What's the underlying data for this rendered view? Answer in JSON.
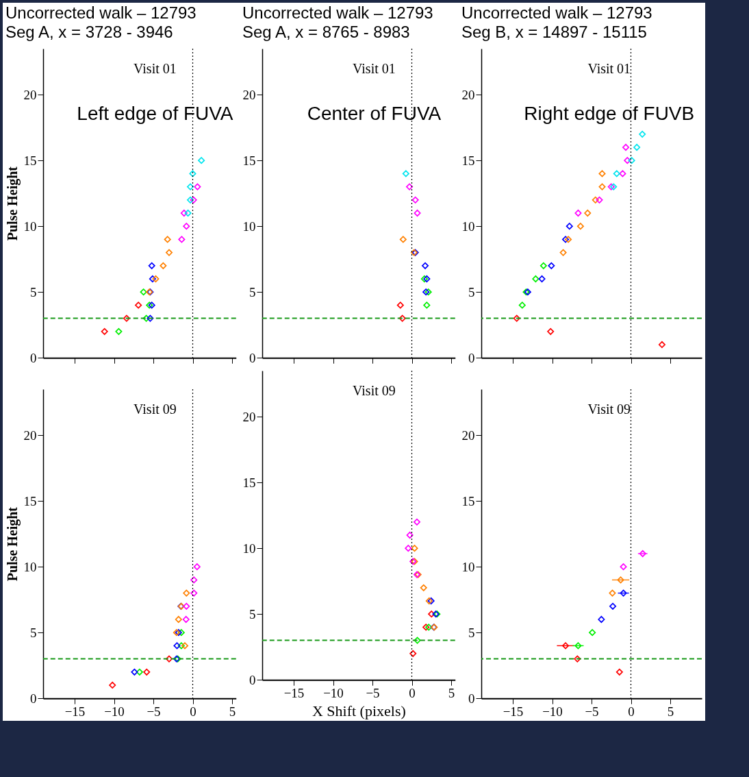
{
  "chart_data": [
    {
      "type": "scatter",
      "title": "Uncorrected walk – 12793\nSeg A, x = 3728 - 3946",
      "ylabel": "Pulse Height",
      "annotations": [
        "Visit 01",
        "Left edge of FUVA"
      ],
      "xlim": [
        -19,
        5.5
      ],
      "ylim": [
        0,
        23.5
      ],
      "xticks": [
        -15,
        -10,
        -5,
        0,
        5
      ],
      "yticks": [
        0,
        5,
        10,
        15,
        20
      ],
      "tick_labels": "y",
      "marker": "diamond",
      "legend": false,
      "grid": false,
      "ref_lines": [
        {
          "axis": "y",
          "value": 3,
          "color": "#1a9a1a",
          "line_style": "dashed"
        },
        {
          "axis": "x",
          "value": 0,
          "color": "#000000",
          "line_style": "dotted"
        }
      ],
      "series": [
        {
          "color": "#ff0000",
          "x": [
            -6.9,
            -8.4,
            -11.2
          ],
          "values": [
            4,
            3,
            2
          ]
        },
        {
          "color": "#00ee00",
          "x": [
            -6.25,
            -5.5,
            -5.9,
            -9.4
          ],
          "values": [
            5,
            4,
            3,
            2
          ]
        },
        {
          "color": "#0000ff",
          "x": [
            -5.2,
            -5.1,
            -5.4,
            -5.2,
            -5.4
          ],
          "values": [
            7,
            6,
            5,
            4,
            3
          ]
        },
        {
          "color": "#ff8000",
          "x": [
            -3.2,
            -3.0,
            -3.75,
            -4.7,
            -5.5
          ],
          "values": [
            9,
            8,
            7,
            6,
            5
          ]
        },
        {
          "color": "#ff00ff",
          "x": [
            0.6,
            0.1,
            -1.1,
            -0.8,
            -1.4
          ],
          "values": [
            13,
            12,
            11,
            10,
            9
          ]
        },
        {
          "color": "#00e5ee",
          "x": [
            1.1,
            0,
            -0.3,
            -0.3,
            -0.6
          ],
          "values": [
            15,
            14,
            13,
            12,
            11
          ]
        }
      ]
    },
    {
      "type": "scatter",
      "title": "Uncorrected walk – 12793\nSeg A, x = 8765 - 8983",
      "annotations": [
        "Visit 01",
        "Center of FUVA"
      ],
      "xlim": [
        -19,
        5.5
      ],
      "ylim": [
        0,
        23.5
      ],
      "xticks": [
        -15,
        -10,
        -5,
        0,
        5
      ],
      "yticks": [
        0,
        5,
        10,
        15,
        20
      ],
      "tick_labels": "y",
      "marker": "diamond",
      "legend": false,
      "grid": false,
      "ref_lines": [
        {
          "axis": "y",
          "value": 3,
          "color": "#1a9a1a",
          "line_style": "dashed"
        },
        {
          "axis": "x",
          "value": 0,
          "color": "#000000",
          "line_style": "dotted"
        }
      ],
      "series": [
        {
          "color": "#ff0000",
          "x": [
            -1.45,
            -1.2
          ],
          "values": [
            4,
            3
          ]
        },
        {
          "color": "#00ee00",
          "x": [
            1.6,
            2.1,
            1.9
          ],
          "values": [
            6,
            5,
            4
          ]
        },
        {
          "color": "#0000ff",
          "x": [
            0.45,
            1.7,
            1.9,
            1.8
          ],
          "values": [
            8,
            7,
            6,
            5
          ]
        },
        {
          "color": "#ff8000",
          "x": [
            -1.1,
            0.3
          ],
          "values": [
            9,
            8
          ]
        },
        {
          "color": "#ff00ff",
          "x": [
            -0.3,
            0.45,
            0.7
          ],
          "values": [
            13,
            12,
            11
          ]
        },
        {
          "color": "#00e5ee",
          "x": [
            -0.75
          ],
          "values": [
            14
          ]
        }
      ]
    },
    {
      "type": "scatter",
      "title": "Uncorrected walk – 12793\nSeg B, x = 14897 - 15115",
      "annotations": [
        "Visit 01",
        "Right edge of FUVB"
      ],
      "xlim": [
        -19,
        9
      ],
      "ylim": [
        0,
        23.5
      ],
      "xticks": [
        -15,
        -10,
        -5,
        0,
        5
      ],
      "yticks": [
        0,
        5,
        10,
        15,
        20
      ],
      "tick_labels": "y",
      "marker": "diamond",
      "legend": false,
      "grid": false,
      "ref_lines": [
        {
          "axis": "y",
          "value": 3,
          "color": "#1a9a1a",
          "line_style": "dashed"
        },
        {
          "axis": "x",
          "value": 0,
          "color": "#000000",
          "line_style": "dotted"
        }
      ],
      "series": [
        {
          "color": "#ff0000",
          "x": [
            -14.5,
            -10.2,
            3.95
          ],
          "values": [
            3,
            2,
            1
          ]
        },
        {
          "color": "#00ee00",
          "x": [
            -11.1,
            -12.1,
            -13.3,
            -13.8
          ],
          "values": [
            7,
            6,
            5,
            4
          ]
        },
        {
          "color": "#0000ff",
          "x": [
            -7.8,
            -8.3,
            -10.1,
            -11.3,
            -13.1
          ],
          "values": [
            10,
            9,
            7,
            6,
            5
          ]
        },
        {
          "color": "#ff8000",
          "x": [
            -3.65,
            -3.65,
            -4.5,
            -5.5,
            -6.4,
            -7.95,
            -8.6
          ],
          "values": [
            14,
            13,
            12,
            11,
            10,
            9,
            8
          ]
        },
        {
          "color": "#ff00ff",
          "x": [
            -0.65,
            -0.45,
            -1.05,
            -2.5,
            -4.0,
            -6.7
          ],
          "values": [
            16,
            15,
            14,
            13,
            12,
            11
          ]
        },
        {
          "color": "#00e5ee",
          "x": [
            1.45,
            0.75,
            0.1,
            -1.8,
            -2.2
          ],
          "values": [
            17,
            16,
            15,
            14,
            13
          ]
        }
      ]
    },
    {
      "type": "scatter",
      "ylabel": "Pulse Height",
      "annotations": [
        "Visit 09"
      ],
      "xlim": [
        -19,
        5.5
      ],
      "ylim": [
        0,
        23.5
      ],
      "xticks": [
        -15,
        -10,
        -5,
        0,
        5
      ],
      "yticks": [
        0,
        5,
        10,
        15,
        20
      ],
      "marker": "diamond",
      "legend": false,
      "grid": false,
      "ref_lines": [
        {
          "axis": "y",
          "value": 3,
          "color": "#1a9a1a",
          "line_style": "dashed"
        },
        {
          "axis": "x",
          "value": 0,
          "color": "#000000",
          "line_style": "dotted"
        }
      ],
      "series": [
        {
          "color": "#ff0000",
          "x": [
            -3.0,
            -5.85,
            -10.2
          ],
          "values": [
            3,
            2,
            1
          ]
        },
        {
          "color": "#00ee00",
          "x": [
            -1.45,
            -1.45,
            -1.9,
            -6.75
          ],
          "values": [
            5,
            4,
            3,
            2
          ]
        },
        {
          "color": "#0000ff",
          "x": [
            -1.5,
            -1.8,
            -2.0,
            -2.05,
            -7.4
          ],
          "values": [
            7,
            5,
            4,
            3,
            2
          ]
        },
        {
          "color": "#ff8000",
          "x": [
            -0.8,
            -1.45,
            -1.8,
            -2.05,
            -1.0
          ],
          "values": [
            8,
            7,
            6,
            5,
            4
          ]
        },
        {
          "color": "#ff00ff",
          "x": [
            0.55,
            0.15,
            0.15,
            -0.8,
            -0.85
          ],
          "values": [
            10,
            9,
            8,
            7,
            6
          ]
        }
      ]
    },
    {
      "type": "scatter",
      "xlabel": "X Shift (pixels)",
      "annotations": [
        "Visit 09"
      ],
      "xlim": [
        -19,
        5.5
      ],
      "ylim": [
        0,
        23.5
      ],
      "xticks": [
        -15,
        -10,
        -5,
        0,
        5
      ],
      "yticks": [
        0,
        5,
        10,
        15,
        20
      ],
      "marker": "diamond",
      "legend": false,
      "grid": false,
      "ref_lines": [
        {
          "axis": "y",
          "value": 3,
          "color": "#1a9a1a",
          "line_style": "dashed"
        },
        {
          "axis": "x",
          "value": 0,
          "color": "#000000",
          "line_style": "dotted"
        }
      ],
      "series": [
        {
          "color": "#ff0000",
          "x": [
            2.5,
            1.8,
            0.15
          ],
          "values": [
            5,
            4,
            2
          ]
        },
        {
          "color": "#00ee00",
          "x": [
            3.2,
            2.15,
            0.7
          ],
          "values": [
            5,
            4,
            3
          ]
        },
        {
          "color": "#0000ff",
          "x": [
            2.45,
            3.05,
            2.8
          ],
          "values": [
            6,
            5,
            4
          ]
        },
        {
          "color": "#ff8000",
          "x": [
            0.35,
            0.35,
            0.8,
            1.5,
            2.2,
            2.85
          ],
          "values": [
            10,
            9,
            8,
            7,
            6,
            4
          ]
        },
        {
          "color": "#ff00ff",
          "x": [
            0.65,
            -0.25,
            -0.45,
            0.15,
            0.65
          ],
          "values": [
            12,
            11,
            10,
            9,
            8
          ]
        }
      ]
    },
    {
      "type": "scatter",
      "annotations": [
        "Visit 09"
      ],
      "xlim": [
        -19,
        9
      ],
      "ylim": [
        0,
        23.5
      ],
      "xticks": [
        -15,
        -10,
        -5,
        0,
        5
      ],
      "yticks": [
        0,
        5,
        10,
        15,
        20
      ],
      "marker": "diamond",
      "legend": false,
      "grid": false,
      "ref_lines": [
        {
          "axis": "y",
          "value": 3,
          "color": "#1a9a1a",
          "line_style": "dashed"
        },
        {
          "axis": "x",
          "value": 0,
          "color": "#000000",
          "line_style": "dotted"
        }
      ],
      "series": [
        {
          "color": "#ff0000",
          "x": [
            -8.3,
            -6.8,
            -1.45
          ],
          "values": [
            4,
            3,
            2
          ],
          "xerrors": [
            1.1,
            null,
            null
          ]
        },
        {
          "color": "#00ee00",
          "x": [
            -4.9,
            -6.7
          ],
          "values": [
            5,
            4
          ],
          "xerrors": [
            null,
            0.7
          ]
        },
        {
          "color": "#0000ff",
          "x": [
            -0.95,
            -2.3,
            -3.75
          ],
          "values": [
            8,
            7,
            6
          ],
          "xerrors": [
            0.7,
            null,
            null
          ]
        },
        {
          "color": "#ff8000",
          "x": [
            -1.3,
            -2.35
          ],
          "values": [
            9,
            8
          ],
          "xerrors": [
            1.1,
            null
          ]
        },
        {
          "color": "#ff00ff",
          "x": [
            1.5,
            -0.95
          ],
          "values": [
            11,
            10
          ],
          "xerrors": [
            0.6,
            null
          ]
        }
      ]
    }
  ]
}
